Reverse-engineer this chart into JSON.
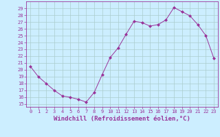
{
  "x": [
    0,
    1,
    2,
    3,
    4,
    5,
    6,
    7,
    8,
    9,
    10,
    11,
    12,
    13,
    14,
    15,
    16,
    17,
    18,
    19,
    20,
    21,
    22,
    23
  ],
  "y": [
    20.5,
    19.0,
    18.0,
    17.0,
    16.2,
    16.0,
    15.7,
    15.3,
    16.7,
    19.3,
    21.8,
    23.2,
    25.2,
    27.1,
    26.9,
    26.4,
    26.6,
    27.3,
    29.1,
    28.5,
    27.9,
    26.6,
    25.0,
    21.7
  ],
  "line_color": "#993399",
  "marker": "D",
  "marker_size": 2,
  "bg_color": "#cceeff",
  "grid_color": "#aacccc",
  "xlabel": "Windchill (Refroidissement éolien,°C)",
  "ylabel_ticks": [
    15,
    16,
    17,
    18,
    19,
    20,
    21,
    22,
    23,
    24,
    25,
    26,
    27,
    28,
    29
  ],
  "ylim": [
    14.6,
    30.0
  ],
  "xlim": [
    -0.5,
    23.5
  ],
  "xticks": [
    0,
    1,
    2,
    3,
    4,
    5,
    6,
    7,
    8,
    9,
    10,
    11,
    12,
    13,
    14,
    15,
    16,
    17,
    18,
    19,
    20,
    21,
    22,
    23
  ],
  "axis_color": "#993399",
  "tick_color": "#993399",
  "tick_fontsize": 5.0,
  "xlabel_fontsize": 6.5
}
